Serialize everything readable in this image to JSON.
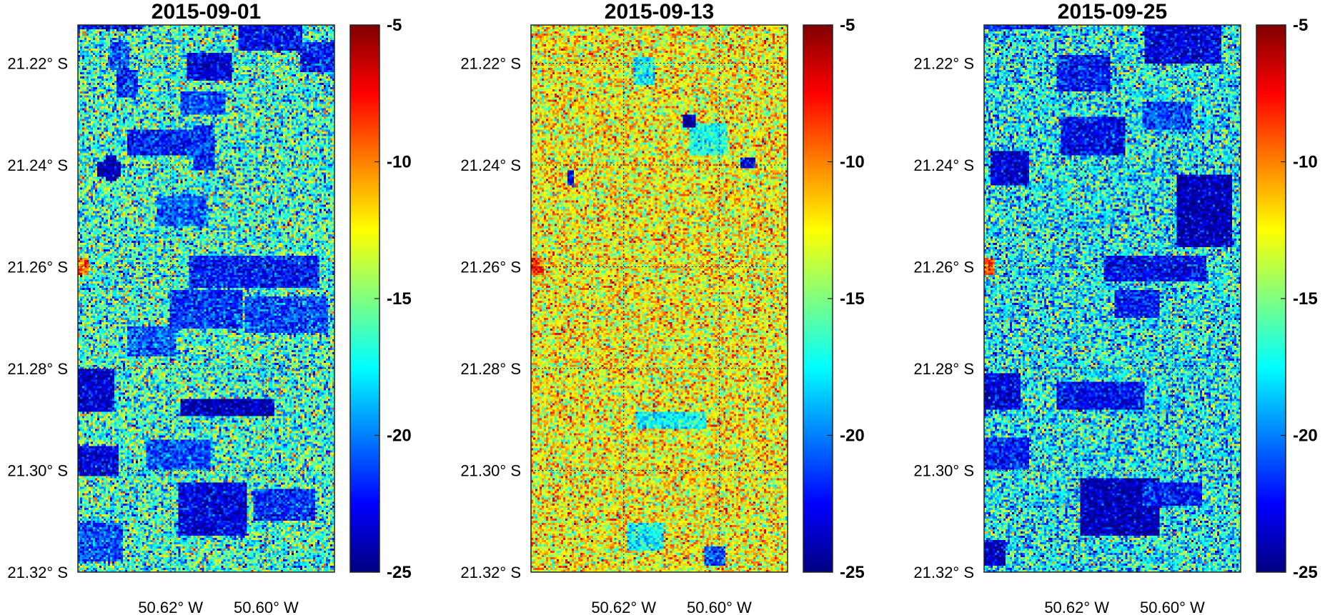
{
  "chart_data": [
    {
      "type": "heatmap",
      "title": "2015-09-01",
      "y_ticks": [
        "21.22° S",
        "21.24° S",
        "21.26° S",
        "21.28° S",
        "21.30° S",
        "21.32° S"
      ],
      "y_tick_values": [
        -21.22,
        -21.24,
        -21.26,
        -21.28,
        -21.3,
        -21.32
      ],
      "x_ticks": [
        "50.62° W",
        "50.60° W"
      ],
      "x_tick_values": [
        -50.62,
        -50.6
      ],
      "xlim": [
        -50.6394,
        -50.5857
      ],
      "ylim": [
        -21.32,
        -21.2125
      ],
      "grid": true,
      "colormap": "jet",
      "clim": [
        -25,
        -5
      ],
      "colorbar_ticks": [
        "-5",
        "-10",
        "-15",
        "-20",
        "-25"
      ],
      "colorbar_tick_values": [
        -5,
        -10,
        -15,
        -20,
        -25
      ],
      "mean_value": -16.5,
      "noise_amplitude": 3.2,
      "features": [
        {
          "shape": "rect",
          "x": [
            -50.6394,
            -50.626
          ],
          "y": [
            -21.213,
            -21.2125
          ],
          "value": -23
        },
        {
          "shape": "rect",
          "x": [
            -50.6324,
            -50.6287
          ],
          "y": [
            -21.2213,
            -21.216
          ],
          "value": -21
        },
        {
          "shape": "rect",
          "x": [
            -50.6309,
            -50.627
          ],
          "y": [
            -21.2266,
            -21.2215
          ],
          "value": -21.5
        },
        {
          "shape": "rect",
          "x": [
            -50.6287,
            -50.6115
          ],
          "y": [
            -21.238,
            -21.2335
          ],
          "value": -22
        },
        {
          "shape": "rect",
          "x": [
            -50.6165,
            -50.6075
          ],
          "y": [
            -21.2233,
            -21.218
          ],
          "value": -23
        },
        {
          "shape": "rect",
          "x": [
            -50.6055,
            -50.5925
          ],
          "y": [
            -21.2175,
            -21.2125
          ],
          "value": -22.5
        },
        {
          "shape": "rect",
          "x": [
            -50.5925,
            -50.5857
          ],
          "y": [
            -21.2215,
            -21.216
          ],
          "value": -22
        },
        {
          "shape": "rect",
          "x": [
            -50.6175,
            -50.6085
          ],
          "y": [
            -21.23,
            -21.2258
          ],
          "value": -21
        },
        {
          "shape": "rect",
          "x": [
            -50.615,
            -50.611
          ],
          "y": [
            -21.241,
            -21.2325
          ],
          "value": -21.5
        },
        {
          "shape": "rect",
          "x": [
            -50.635,
            -50.6305
          ],
          "y": [
            -21.242,
            -21.2395
          ],
          "value": -24
        },
        {
          "shape": "rect",
          "x": [
            -50.6333,
            -50.6316
          ],
          "y": [
            -21.2432,
            -21.2382
          ],
          "value": -24
        },
        {
          "shape": "rect",
          "x": [
            -50.6225,
            -50.6125
          ],
          "y": [
            -21.252,
            -21.2465
          ],
          "value": -20.5
        },
        {
          "shape": "rect",
          "x": [
            -50.616,
            -50.589
          ],
          "y": [
            -21.264,
            -21.258
          ],
          "value": -22
        },
        {
          "shape": "rect",
          "x": [
            -50.62,
            -50.605
          ],
          "y": [
            -21.272,
            -21.265
          ],
          "value": -21.5
        },
        {
          "shape": "rect",
          "x": [
            -50.604,
            -50.587
          ],
          "y": [
            -21.273,
            -21.266
          ],
          "value": -21
        },
        {
          "shape": "rect",
          "x": [
            -50.629,
            -50.619
          ],
          "y": [
            -21.2775,
            -21.272
          ],
          "value": -20.5
        },
        {
          "shape": "rect",
          "x": [
            -50.6394,
            -50.632
          ],
          "y": [
            -21.2885,
            -21.2805
          ],
          "value": -23.5
        },
        {
          "shape": "rect",
          "x": [
            -50.6175,
            -50.5985
          ],
          "y": [
            -21.2895,
            -21.2865
          ],
          "value": -24
        },
        {
          "shape": "rect",
          "x": [
            -50.6394,
            -50.631
          ],
          "y": [
            -21.301,
            -21.2955
          ],
          "value": -23
        },
        {
          "shape": "rect",
          "x": [
            -50.625,
            -50.612
          ],
          "y": [
            -21.3,
            -21.2945
          ],
          "value": -21
        },
        {
          "shape": "rect",
          "x": [
            -50.618,
            -50.604
          ],
          "y": [
            -21.313,
            -21.303
          ],
          "value": -23
        },
        {
          "shape": "rect",
          "x": [
            -50.6025,
            -50.59
          ],
          "y": [
            -21.31,
            -21.304
          ],
          "value": -21.5
        },
        {
          "shape": "rect",
          "x": [
            -50.6394,
            -50.63
          ],
          "y": [
            -21.318,
            -21.311
          ],
          "value": -21
        },
        {
          "shape": "rect",
          "x": [
            -50.6394,
            -50.6375
          ],
          "y": [
            -21.2615,
            -21.2585
          ],
          "value": -9
        }
      ]
    },
    {
      "type": "heatmap",
      "title": "2015-09-13",
      "y_ticks": [
        "21.22° S",
        "21.24° S",
        "21.26° S",
        "21.28° S",
        "21.30° S",
        "21.32° S"
      ],
      "y_tick_values": [
        -21.22,
        -21.24,
        -21.26,
        -21.28,
        -21.3,
        -21.32
      ],
      "x_ticks": [
        "50.62° W",
        "50.60° W"
      ],
      "x_tick_values": [
        -50.62,
        -50.6
      ],
      "xlim": [
        -50.6394,
        -50.5857
      ],
      "ylim": [
        -21.32,
        -21.2125
      ],
      "grid": true,
      "colormap": "jet",
      "clim": [
        -25,
        -5
      ],
      "colorbar_ticks": [
        "-5",
        "-10",
        "-15",
        "-20",
        "-25"
      ],
      "colorbar_tick_values": [
        -5,
        -10,
        -15,
        -20,
        -25
      ],
      "mean_value": -12.5,
      "noise_amplitude": 2.6,
      "features": [
        {
          "shape": "rect",
          "x": [
            -50.6175,
            -50.6135
          ],
          "y": [
            -21.224,
            -21.219
          ],
          "value": -17.5
        },
        {
          "shape": "rect",
          "x": [
            -50.606,
            -50.5985
          ],
          "y": [
            -21.238,
            -21.232
          ],
          "value": -17
        },
        {
          "shape": "rect",
          "x": [
            -50.6072,
            -50.6052
          ],
          "y": [
            -21.2325,
            -21.2303
          ],
          "value": -24
        },
        {
          "shape": "rect",
          "x": [
            -50.5952,
            -50.5925
          ],
          "y": [
            -21.2405,
            -21.2388
          ],
          "value": -23
        },
        {
          "shape": "rect",
          "x": [
            -50.6314,
            -50.6308
          ],
          "y": [
            -21.244,
            -21.2415
          ],
          "value": -22
        },
        {
          "shape": "rect",
          "x": [
            -50.617,
            -50.603
          ],
          "y": [
            -21.292,
            -21.289
          ],
          "value": -17.5
        },
        {
          "shape": "rect",
          "x": [
            -50.619,
            -50.612
          ],
          "y": [
            -21.316,
            -21.311
          ],
          "value": -17.5
        },
        {
          "shape": "rect",
          "x": [
            -50.603,
            -50.599
          ],
          "y": [
            -21.319,
            -21.3155
          ],
          "value": -21
        },
        {
          "shape": "rect",
          "x": [
            -50.6394,
            -50.637
          ],
          "y": [
            -21.2615,
            -21.2585
          ],
          "value": -8.5
        }
      ]
    },
    {
      "type": "heatmap",
      "title": "2015-09-25",
      "y_ticks": [
        "21.22° S",
        "21.24° S",
        "21.26° S",
        "21.28° S",
        "21.30° S",
        "21.32° S"
      ],
      "y_tick_values": [
        -21.22,
        -21.24,
        -21.26,
        -21.28,
        -21.3,
        -21.32
      ],
      "x_ticks": [
        "50.62° W",
        "50.60° W"
      ],
      "x_tick_values": [
        -50.62,
        -50.6
      ],
      "xlim": [
        -50.6394,
        -50.5857
      ],
      "ylim": [
        -21.32,
        -21.2125
      ],
      "grid": true,
      "colormap": "jet",
      "clim": [
        -25,
        -5
      ],
      "colorbar_ticks": [
        "-5",
        "-10",
        "-15",
        "-20",
        "-25"
      ],
      "colorbar_tick_values": [
        -5,
        -10,
        -15,
        -20,
        -25
      ],
      "mean_value": -17.5,
      "noise_amplitude": 3.0,
      "features": [
        {
          "shape": "rect",
          "x": [
            -50.6394,
            -50.625
          ],
          "y": [
            -21.213,
            -21.2125
          ],
          "value": -22
        },
        {
          "shape": "rect",
          "x": [
            -50.6055,
            -50.59
          ],
          "y": [
            -21.22,
            -21.2125
          ],
          "value": -23
        },
        {
          "shape": "rect",
          "x": [
            -50.624,
            -50.613
          ],
          "y": [
            -21.2255,
            -21.2185
          ],
          "value": -22
        },
        {
          "shape": "rect",
          "x": [
            -50.623,
            -50.61
          ],
          "y": [
            -21.238,
            -21.231
          ],
          "value": -22.5
        },
        {
          "shape": "rect",
          "x": [
            -50.638,
            -50.63
          ],
          "y": [
            -21.244,
            -21.2375
          ],
          "value": -23.5
        },
        {
          "shape": "rect",
          "x": [
            -50.606,
            -50.596
          ],
          "y": [
            -21.233,
            -21.228
          ],
          "value": -21
        },
        {
          "shape": "rect",
          "x": [
            -50.599,
            -50.5875
          ],
          "y": [
            -21.256,
            -21.242
          ],
          "value": -24
        },
        {
          "shape": "rect",
          "x": [
            -50.614,
            -50.593
          ],
          "y": [
            -21.263,
            -21.258
          ],
          "value": -22.5
        },
        {
          "shape": "rect",
          "x": [
            -50.612,
            -50.603
          ],
          "y": [
            -21.27,
            -21.265
          ],
          "value": -22
        },
        {
          "shape": "rect",
          "x": [
            -50.6394,
            -50.632
          ],
          "y": [
            -21.288,
            -21.2815
          ],
          "value": -23
        },
        {
          "shape": "rect",
          "x": [
            -50.624,
            -50.606
          ],
          "y": [
            -21.288,
            -21.283
          ],
          "value": -22.5
        },
        {
          "shape": "rect",
          "x": [
            -50.6394,
            -50.63
          ],
          "y": [
            -21.3,
            -21.294
          ],
          "value": -22
        },
        {
          "shape": "rect",
          "x": [
            -50.619,
            -50.603
          ],
          "y": [
            -21.313,
            -21.302
          ],
          "value": -24
        },
        {
          "shape": "rect",
          "x": [
            -50.606,
            -50.594
          ],
          "y": [
            -21.307,
            -21.303
          ],
          "value": -22
        },
        {
          "shape": "rect",
          "x": [
            -50.6394,
            -50.635
          ],
          "y": [
            -21.319,
            -21.314
          ],
          "value": -23.5
        },
        {
          "shape": "rect",
          "x": [
            -50.6394,
            -50.6375
          ],
          "y": [
            -21.2615,
            -21.2585
          ],
          "value": -9
        }
      ]
    }
  ]
}
